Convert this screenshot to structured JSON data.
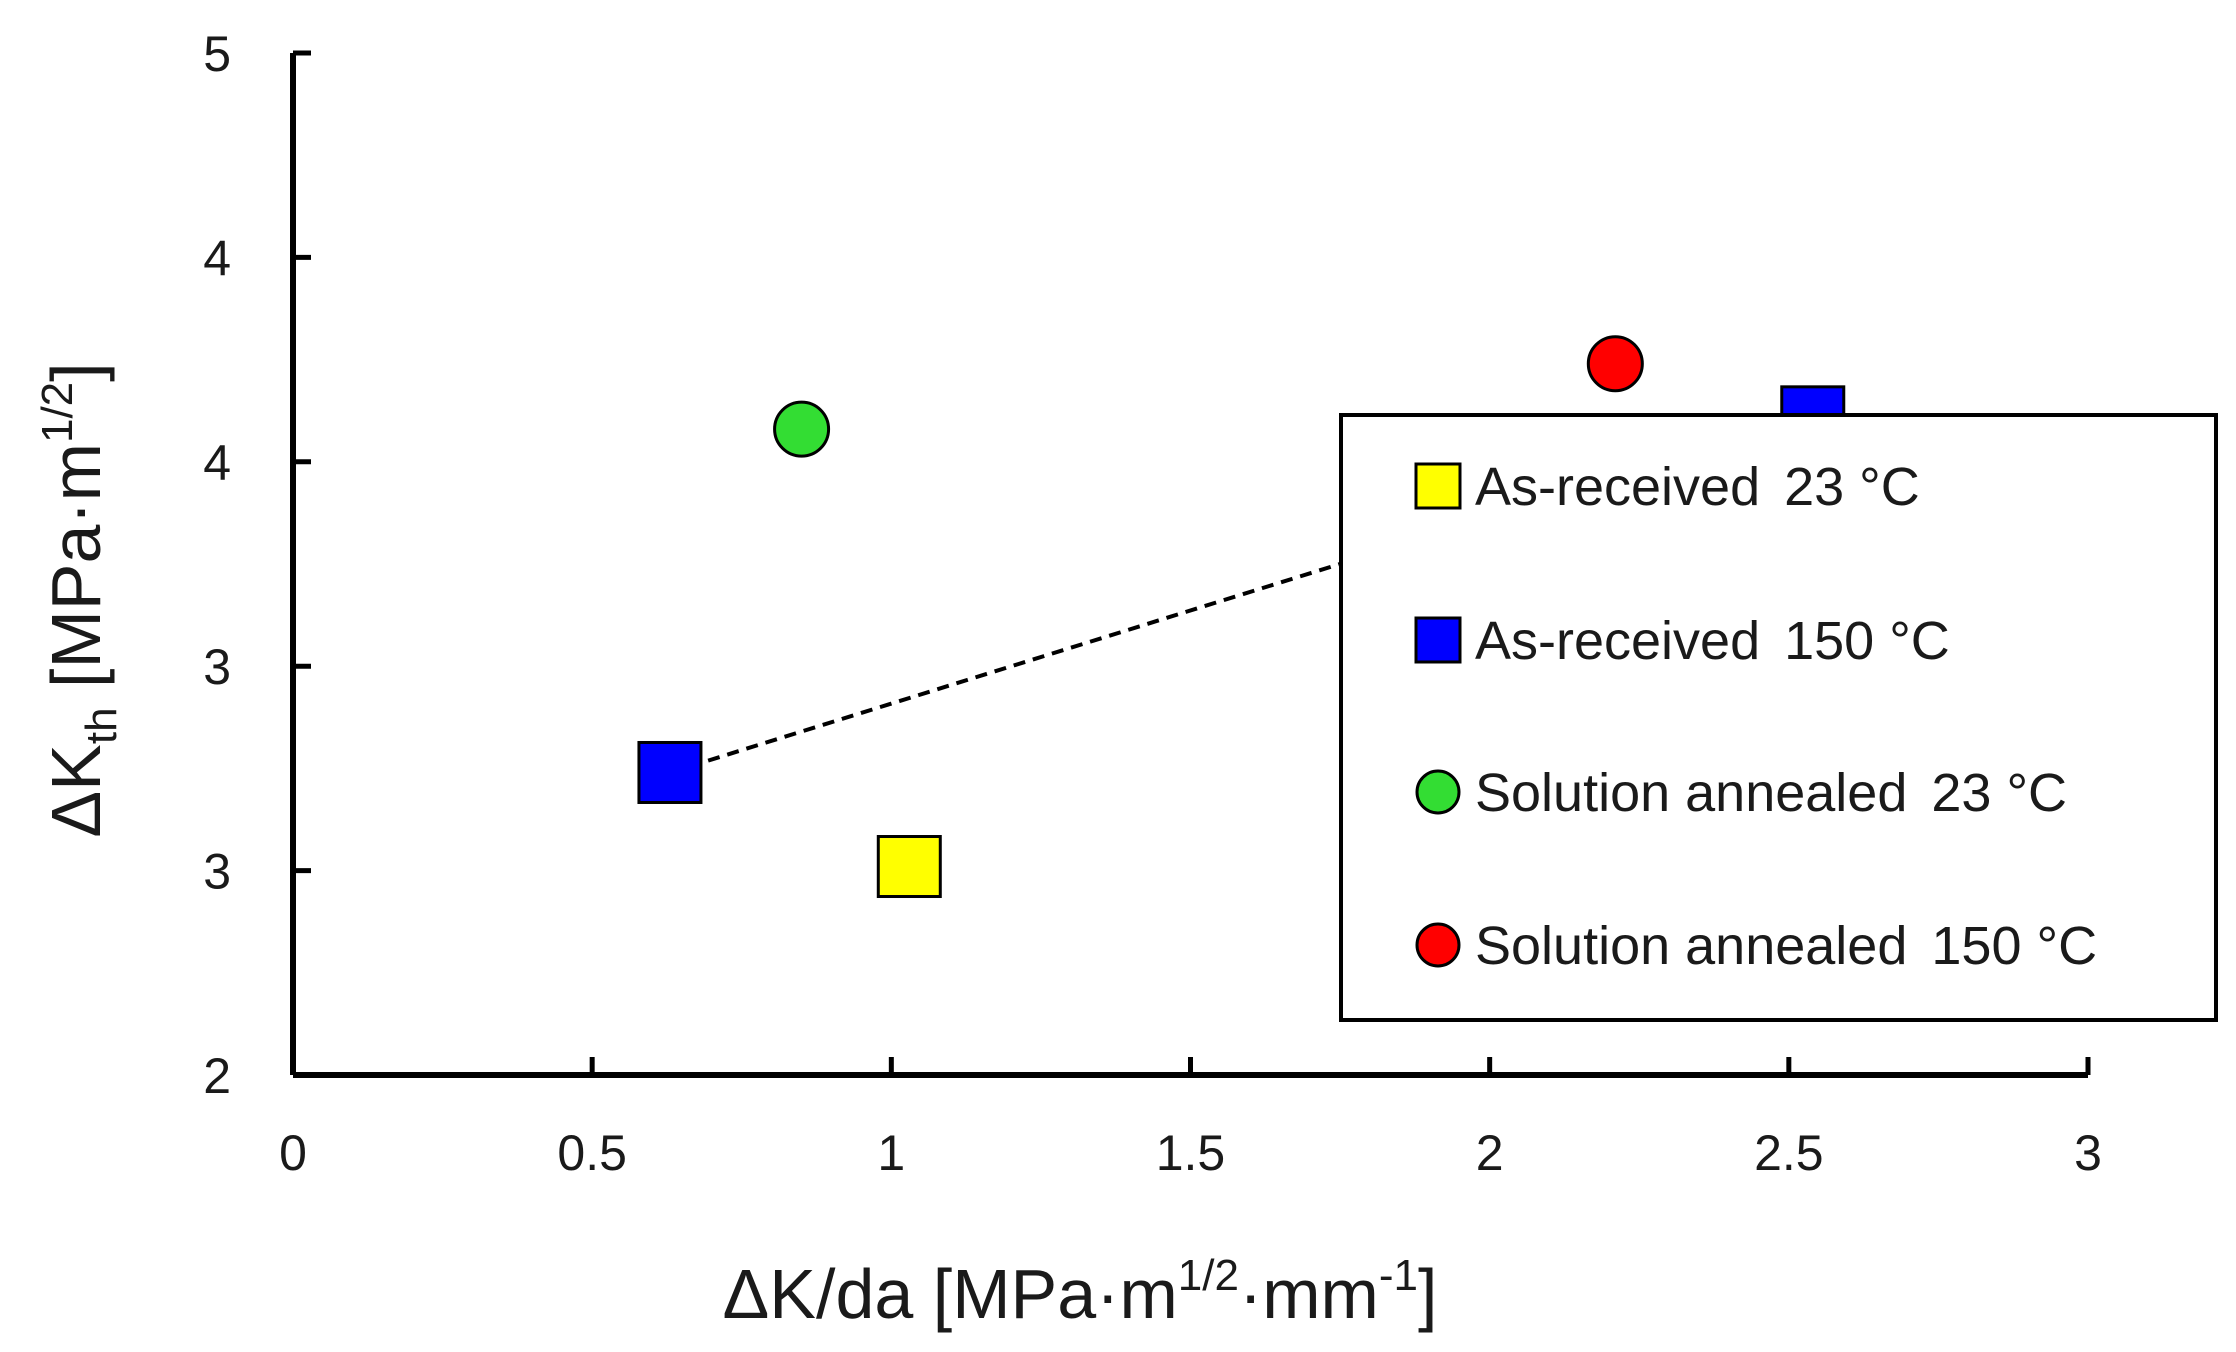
{
  "chart_data": {
    "type": "scatter",
    "title": "",
    "xlabel": "ΔK/da [MPa·m1/2·mm-1]",
    "xlabel_parts": {
      "main": "ΔK/da [MPa·m",
      "sup1": "1/2",
      "mid": "·mm",
      "sup2": "-1",
      "end": "]"
    },
    "ylabel": "ΔKth [MPa·m1/2]",
    "ylabel_parts": {
      "main": "ΔK",
      "sub": "th",
      "mid": " [MPa·m",
      "sup": "1/2",
      "end": "]"
    },
    "xlim": [
      0,
      3
    ],
    "ylim": [
      2,
      4.5
    ],
    "x_ticks": [
      {
        "value": 0,
        "label": "0"
      },
      {
        "value": 0.5,
        "label": "0.5"
      },
      {
        "value": 1,
        "label": "1"
      },
      {
        "value": 1.5,
        "label": "1.5"
      },
      {
        "value": 2,
        "label": "2"
      },
      {
        "value": 2.5,
        "label": "2.5"
      },
      {
        "value": 3,
        "label": "3"
      }
    ],
    "y_ticks": [
      {
        "value": 2,
        "label": "2"
      },
      {
        "value": 2.5,
        "label": "3"
      },
      {
        "value": 3,
        "label": "3"
      },
      {
        "value": 3.5,
        "label": "4"
      },
      {
        "value": 4,
        "label": "4"
      },
      {
        "value": 4.5,
        "label": "5"
      }
    ],
    "grid": false,
    "legend_position": "right",
    "series": [
      {
        "name": "As-received",
        "temp": "23 °C",
        "marker": "square",
        "color": "#FFFF00",
        "points": [
          {
            "x": 1.03,
            "y": 2.51
          }
        ]
      },
      {
        "name": "As-received",
        "temp": "150 °C",
        "marker": "square",
        "color": "#0000FF",
        "points": [
          {
            "x": 0.63,
            "y": 2.74
          },
          {
            "x": 2.54,
            "y": 3.61
          }
        ]
      },
      {
        "name": "Solution annealed",
        "temp": "23 °C",
        "marker": "circle",
        "color": "#33DD33",
        "points": [
          {
            "x": 0.85,
            "y": 3.58
          }
        ]
      },
      {
        "name": "Solution annealed",
        "temp": "150 °C",
        "marker": "circle",
        "color": "#FF0000",
        "points": [
          {
            "x": 2.21,
            "y": 3.74
          }
        ]
      }
    ],
    "trendline": {
      "style": "dashed",
      "color": "#000000",
      "from": {
        "x": 0.63,
        "y": 2.74
      },
      "to": {
        "x": 2.54,
        "y": 3.61
      }
    }
  }
}
